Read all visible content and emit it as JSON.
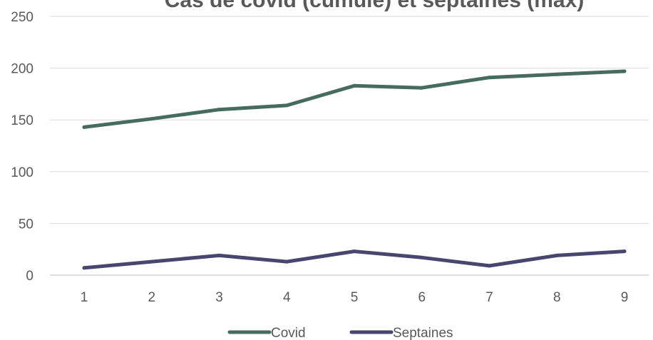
{
  "chart_data": {
    "type": "line",
    "title": "Cas de covid (cumulé) et septaines (max)",
    "xlabel": "",
    "ylabel": "",
    "categories": [
      "1",
      "2",
      "3",
      "4",
      "5",
      "6",
      "7",
      "8",
      "9"
    ],
    "ylim": [
      0,
      250
    ],
    "yticks": [
      "0",
      "50",
      "100",
      "150",
      "200",
      "250"
    ],
    "grid": true,
    "legend_position": "bottom",
    "series": [
      {
        "name": "Covid",
        "color": "#476B5E",
        "values": [
          143,
          151,
          160,
          164,
          183,
          181,
          191,
          194,
          197
        ]
      },
      {
        "name": "Septaines",
        "color": "#48466E",
        "values": [
          7,
          13,
          19,
          13,
          23,
          17,
          9,
          19,
          23
        ]
      }
    ]
  }
}
